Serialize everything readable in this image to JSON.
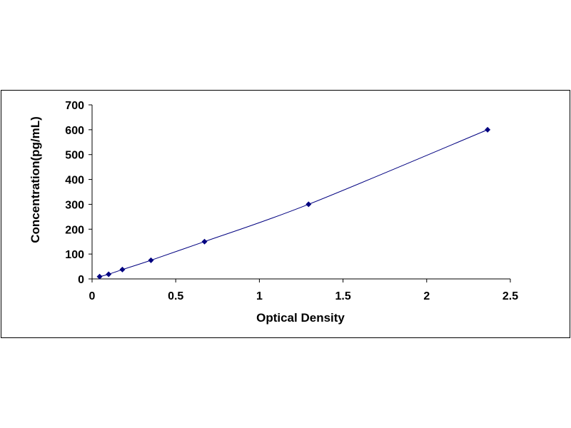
{
  "chart_data": {
    "type": "scatter",
    "title": "",
    "xlabel": "Optical Density",
    "ylabel": "Concentration(pg/mL)",
    "xlim": [
      0,
      2.5
    ],
    "ylim": [
      0,
      700
    ],
    "xticks": [
      0,
      0.5,
      1,
      1.5,
      2,
      2.5
    ],
    "xtick_labels": [
      "0",
      "0.5",
      "1",
      "1.5",
      "2",
      "2.5"
    ],
    "yticks": [
      0,
      100,
      200,
      300,
      400,
      500,
      600,
      700
    ],
    "ytick_labels": [
      "0",
      "100",
      "200",
      "300",
      "400",
      "500",
      "600",
      "700"
    ],
    "grid": false,
    "legend": "none",
    "trendline": "smooth curve through points",
    "series": [
      {
        "x": [
          0.045,
          0.099,
          0.181,
          0.352,
          0.672,
          1.294,
          2.364
        ],
        "y": [
          9.375,
          18.75,
          37.5,
          75,
          150,
          300,
          600
        ],
        "marker": "diamond",
        "color": "#000080"
      }
    ]
  }
}
